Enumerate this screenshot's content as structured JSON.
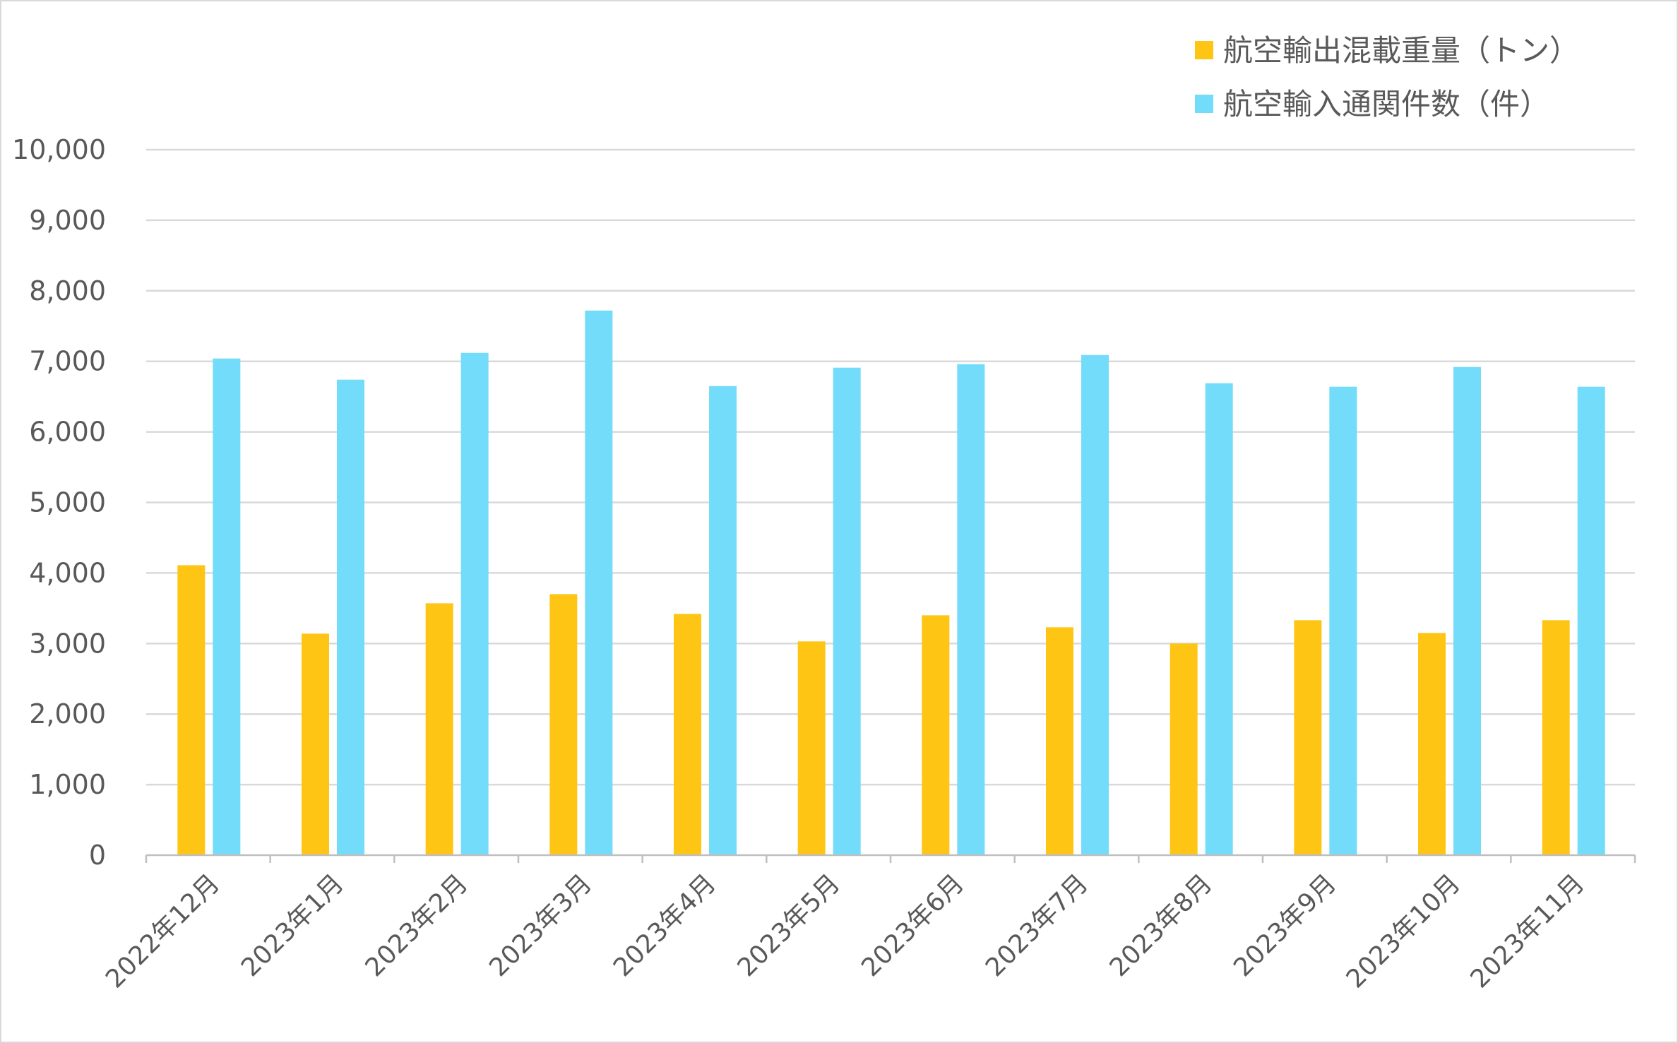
{
  "chart_data": {
    "type": "bar",
    "categories": [
      "2022年12月",
      "2023年1月",
      "2023年2月",
      "2023年3月",
      "2023年4月",
      "2023年5月",
      "2023年6月",
      "2023年7月",
      "2023年8月",
      "2023年9月",
      "2023年10月",
      "2023年11月"
    ],
    "series": [
      {
        "name": "航空輸出混載重量（トン）",
        "color": "#ffc514",
        "values": [
          4110,
          3140,
          3570,
          3700,
          3420,
          3030,
          3400,
          3230,
          3000,
          3330,
          3150,
          3330
        ]
      },
      {
        "name": "航空輸入通関件数（件）",
        "color": "#72dcfa",
        "values": [
          7040,
          6740,
          7120,
          7720,
          6650,
          6910,
          6960,
          7090,
          6690,
          6640,
          6920,
          6640
        ]
      }
    ],
    "ylim": [
      0,
      10000
    ],
    "yticks": [
      0,
      1000,
      2000,
      3000,
      4000,
      5000,
      6000,
      7000,
      8000,
      9000,
      10000
    ],
    "ytick_labels": [
      "0",
      "1,000",
      "2,000",
      "3,000",
      "4,000",
      "5,000",
      "6,000",
      "7,000",
      "8,000",
      "9,000",
      "10,000"
    ],
    "grid": true,
    "legend_position": "top-right",
    "gridline_color": "#d9d9d9",
    "axis_color": "#bfbfbf"
  }
}
